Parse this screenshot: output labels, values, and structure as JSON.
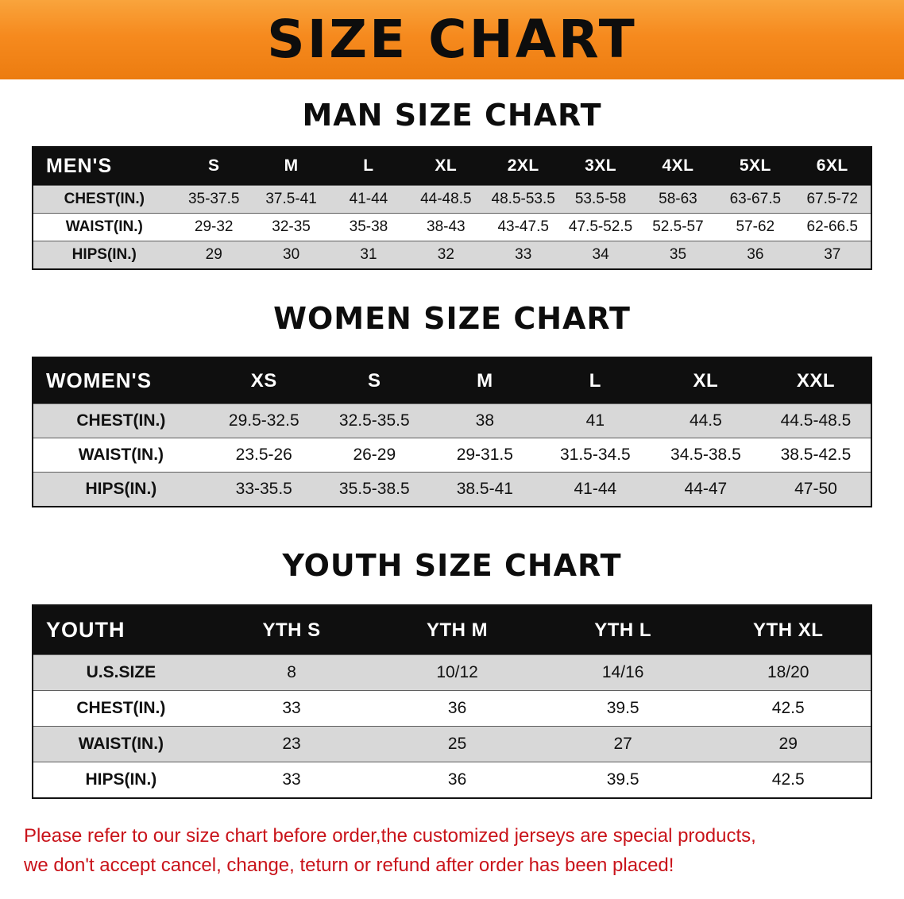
{
  "colors": {
    "banner_orange": "#f68a1e",
    "header_black": "#0f0f0f",
    "row_gray": "#d8d8d8",
    "disclaimer_red": "#c9131a"
  },
  "banner": {
    "title": "SIZE CHART"
  },
  "sections": [
    {
      "heading": "MAN SIZE CHART",
      "table": {
        "corner": "MEN'S",
        "columns": [
          "S",
          "M",
          "L",
          "XL",
          "2XL",
          "3XL",
          "4XL",
          "5XL",
          "6XL"
        ],
        "rows": [
          {
            "label": "CHEST(IN.)",
            "values": [
              "35-37.5",
              "37.5-41",
              "41-44",
              "44-48.5",
              "48.5-53.5",
              "53.5-58",
              "58-63",
              "63-67.5",
              "67.5-72"
            ]
          },
          {
            "label": "WAIST(IN.)",
            "values": [
              "29-32",
              "32-35",
              "35-38",
              "38-43",
              "43-47.5",
              "47.5-52.5",
              "52.5-57",
              "57-62",
              "62-66.5"
            ]
          },
          {
            "label": "HIPS(IN.)",
            "values": [
              "29",
              "30",
              "31",
              "32",
              "33",
              "34",
              "35",
              "36",
              "37"
            ]
          }
        ]
      }
    },
    {
      "heading": "WOMEN SIZE CHART",
      "table": {
        "corner": "WOMEN'S",
        "columns": [
          "XS",
          "S",
          "M",
          "L",
          "XL",
          "XXL"
        ],
        "rows": [
          {
            "label": "CHEST(IN.)",
            "values": [
              "29.5-32.5",
              "32.5-35.5",
              "38",
              "41",
              "44.5",
              "44.5-48.5"
            ]
          },
          {
            "label": "WAIST(IN.)",
            "values": [
              "23.5-26",
              "26-29",
              "29-31.5",
              "31.5-34.5",
              "34.5-38.5",
              "38.5-42.5"
            ]
          },
          {
            "label": "HIPS(IN.)",
            "values": [
              "33-35.5",
              "35.5-38.5",
              "38.5-41",
              "41-44",
              "44-47",
              "47-50"
            ]
          }
        ]
      }
    },
    {
      "heading": "YOUTH SIZE CHART",
      "table": {
        "corner": "YOUTH",
        "columns": [
          "YTH S",
          "YTH M",
          "YTH L",
          "YTH XL"
        ],
        "rows": [
          {
            "label": "U.S.SIZE",
            "values": [
              "8",
              "10/12",
              "14/16",
              "18/20"
            ]
          },
          {
            "label": "CHEST(IN.)",
            "values": [
              "33",
              "36",
              "39.5",
              "42.5"
            ]
          },
          {
            "label": "WAIST(IN.)",
            "values": [
              "23",
              "25",
              "27",
              "29"
            ]
          },
          {
            "label": "HIPS(IN.)",
            "values": [
              "33",
              "36",
              "39.5",
              "42.5"
            ]
          }
        ]
      }
    }
  ],
  "disclaimer": {
    "line1": "Please refer to our size chart before order,the customized jerseys are special products,",
    "line2": "we don't accept cancel, change, teturn or refund after order has been placed!"
  }
}
